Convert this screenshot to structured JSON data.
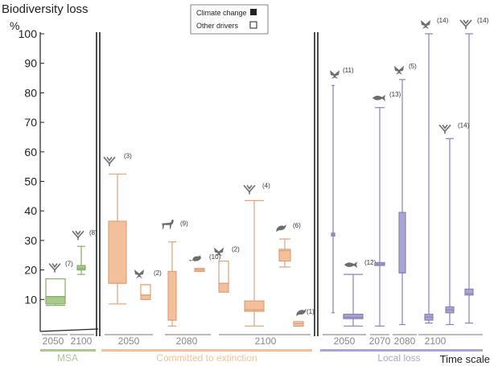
{
  "chart_data": {
    "type": "box",
    "ylabel": "Biodiversity loss",
    "yunit": "%",
    "xlabel": "Time scale",
    "ylim": [
      0,
      100
    ],
    "yticks": [
      10,
      20,
      30,
      40,
      50,
      60,
      70,
      80,
      90,
      100
    ],
    "legend": {
      "placement": "top-center",
      "items": [
        {
          "label": "Climate change",
          "style": "filled"
        },
        {
          "label": "Other drivers",
          "style": "open"
        }
      ]
    },
    "panels": [
      {
        "name": "MSA",
        "color": "#a9c98f",
        "years": [
          "2050",
          "2100"
        ]
      },
      {
        "name": "Committed to extinction",
        "color": "#f2c19c",
        "years": [
          "2050",
          "2080",
          "2100"
        ]
      },
      {
        "name": "Local loss",
        "color": "#a9a6cf",
        "years": [
          "2050",
          "2070",
          "2080",
          "2100"
        ]
      }
    ],
    "series": [
      {
        "panel": "MSA",
        "year": "2050",
        "taxon": "plant",
        "label": "(7)",
        "whisker_low": 8,
        "q1": 8.5,
        "median": 11,
        "q3": 17,
        "whisker_high": 17,
        "style": "mixed"
      },
      {
        "panel": "MSA",
        "year": "2100",
        "taxon": "plant",
        "label": "(8)",
        "whisker_low": 18.5,
        "q1": 20,
        "median": 20.5,
        "q3": 21.5,
        "whisker_high": 28,
        "style": "filled"
      },
      {
        "panel": "Committed to extinction",
        "year": "2050",
        "taxon": "plant",
        "label": "(3)",
        "whisker_low": 8.5,
        "q1": 15.5,
        "median": 15.5,
        "q3": 36.5,
        "whisker_high": 52.5,
        "style": "filled"
      },
      {
        "panel": "Committed to extinction",
        "year": "2050",
        "taxon": "butterfly",
        "label": "(2)",
        "whisker_low": 10,
        "q1": 10,
        "median": 11.5,
        "q3": 15,
        "whisker_high": 15,
        "style": "mixed"
      },
      {
        "panel": "Committed to extinction",
        "year": "2080",
        "taxon": "mammal",
        "label": "(9)",
        "whisker_low": 1,
        "q1": 3,
        "median": 3,
        "q3": 19.5,
        "whisker_high": 29.5,
        "style": "filled"
      },
      {
        "panel": "Committed to extinction",
        "year": "2080",
        "taxon": "rodent",
        "label": "(10)",
        "whisker_low": 19.5,
        "q1": 19.5,
        "median": 20,
        "q3": 20.5,
        "whisker_high": 20.5,
        "style": "filled"
      },
      {
        "panel": "Committed to extinction",
        "year": "2100",
        "taxon": "butterfly",
        "label": "(2)",
        "whisker_low": 12.5,
        "q1": 12.5,
        "median": 15.5,
        "q3": 23,
        "whisker_high": 23,
        "style": "mixed"
      },
      {
        "panel": "Committed to extinction",
        "year": "2100",
        "taxon": "plant",
        "label": "(4)",
        "whisker_low": 1,
        "q1": 6,
        "median": 6.5,
        "q3": 9.5,
        "whisker_high": 43.5,
        "style": "filled"
      },
      {
        "panel": "Committed to extinction",
        "year": "2100",
        "taxon": "bird",
        "label": "(6)",
        "whisker_low": 21,
        "q1": 23,
        "median": 26.5,
        "q3": 27,
        "whisker_high": 30.5,
        "style": "filled"
      },
      {
        "panel": "Committed to extinction",
        "year": "2100",
        "taxon": "bird",
        "label": "(1)",
        "whisker_low": 1,
        "q1": 1,
        "median": 2,
        "q3": 2.5,
        "whisker_high": 2.5,
        "style": "mixed"
      },
      {
        "panel": "Local loss",
        "year": "2050",
        "taxon": "butterfly",
        "label": "(11)",
        "whisker_low": 5.5,
        "q1": 31.5,
        "median": 32,
        "q3": 32.5,
        "whisker_high": 82.5,
        "style": "filled"
      },
      {
        "panel": "Local loss",
        "year": "2050",
        "taxon": "fish",
        "label": "(12)",
        "whisker_low": 1,
        "q1": 3.5,
        "median": 4,
        "q3": 5,
        "whisker_high": 18.5,
        "style": "filled"
      },
      {
        "panel": "Local loss",
        "year": "2070",
        "taxon": "fish",
        "label": "(13)",
        "whisker_low": 1,
        "q1": 21.5,
        "median": 22,
        "q3": 22.5,
        "whisker_high": 75,
        "style": "filled"
      },
      {
        "panel": "Local loss",
        "year": "2080",
        "taxon": "butterfly",
        "label": "(5)",
        "whisker_low": 1.5,
        "q1": 19,
        "median": 19,
        "q3": 39.5,
        "whisker_high": 84.5,
        "style": "filled"
      },
      {
        "panel": "Local loss",
        "year": "2100",
        "taxon": "butterfly",
        "label": "(14)",
        "whisker_low": 2,
        "q1": 3,
        "median": 4,
        "q3": 5,
        "whisker_high": 100,
        "style": "filled"
      },
      {
        "panel": "Local loss",
        "year": "2100",
        "taxon": "plant",
        "label": "(14)",
        "whisker_low": 1.5,
        "q1": 5.5,
        "median": 6.5,
        "q3": 7.5,
        "whisker_high": 64.5,
        "style": "filled"
      },
      {
        "panel": "Local loss",
        "year": "2100",
        "taxon": "plant",
        "label": "(14)",
        "whisker_low": 2,
        "q1": 11.5,
        "median": 12,
        "q3": 13.5,
        "whisker_high": 100,
        "style": "filled"
      }
    ]
  }
}
